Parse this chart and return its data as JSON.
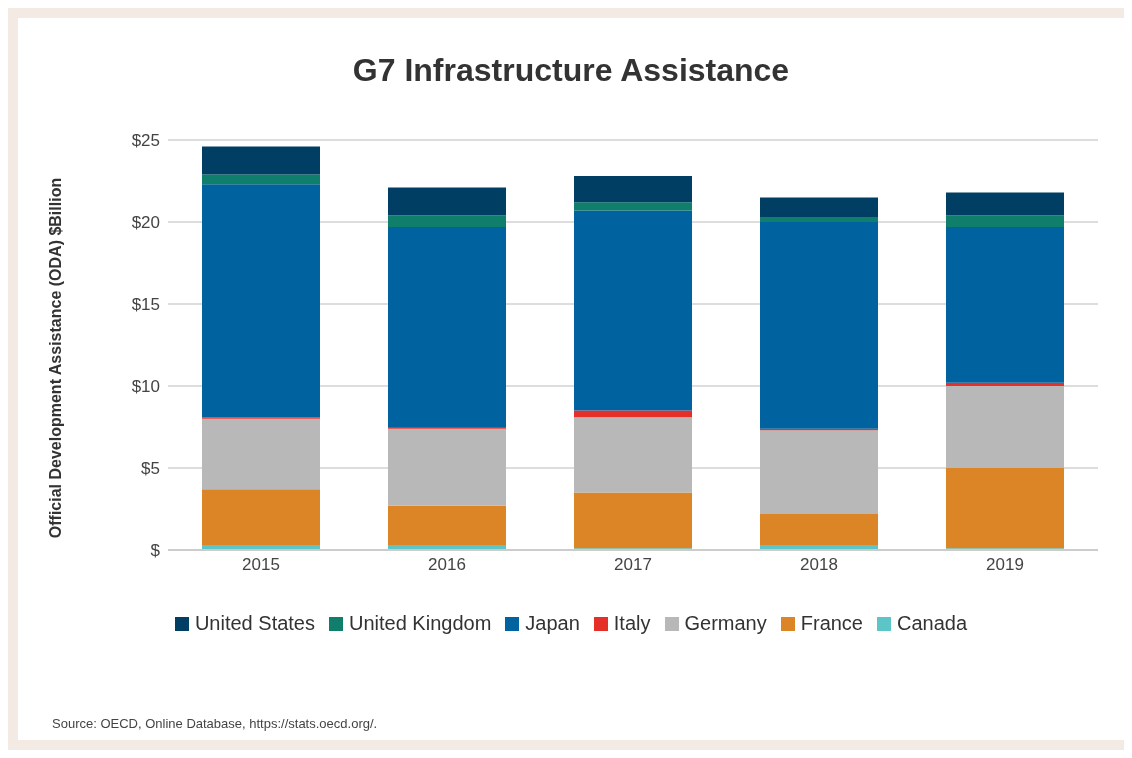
{
  "chart_data": {
    "type": "bar",
    "title": "G7 Infrastructure Assistance",
    "ylabel": "Official Development Assistance (ODA) $Billion",
    "categories": [
      "2015",
      "2016",
      "2017",
      "2018",
      "2019"
    ],
    "stacked": true,
    "series": [
      {
        "name": "Canada",
        "color": "#5bc5c8",
        "values": [
          0.3,
          0.3,
          0.1,
          0.3,
          0.1
        ]
      },
      {
        "name": "France",
        "color": "#dc8526",
        "values": [
          3.4,
          2.4,
          3.4,
          1.9,
          4.9
        ]
      },
      {
        "name": "Germany",
        "color": "#b8b8b8",
        "values": [
          4.3,
          4.7,
          4.6,
          5.1,
          5.0
        ]
      },
      {
        "name": "Italy",
        "color": "#e5302a",
        "values": [
          0.1,
          0.1,
          0.4,
          0.1,
          0.2
        ]
      },
      {
        "name": "Japan",
        "color": "#0063a0",
        "values": [
          14.2,
          12.2,
          12.2,
          12.6,
          9.5
        ]
      },
      {
        "name": "United Kingdom",
        "color": "#0f7f6b",
        "values": [
          0.6,
          0.7,
          0.5,
          0.3,
          0.7
        ]
      },
      {
        "name": "United States",
        "color": "#003f63",
        "values": [
          1.7,
          1.7,
          1.6,
          1.2,
          1.4
        ]
      }
    ],
    "ylim": [
      0,
      25
    ],
    "yticks": [
      {
        "value": 0,
        "label": "$"
      },
      {
        "value": 5,
        "label": "$5"
      },
      {
        "value": 10,
        "label": "$10"
      },
      {
        "value": 15,
        "label": "$15"
      },
      {
        "value": 20,
        "label": "$20"
      },
      {
        "value": 25,
        "label": "$25"
      }
    ],
    "grid": "y",
    "legend": "bottom",
    "annotations": [
      "Source: OECD, Online Database, https://stats.oecd.org/."
    ]
  }
}
